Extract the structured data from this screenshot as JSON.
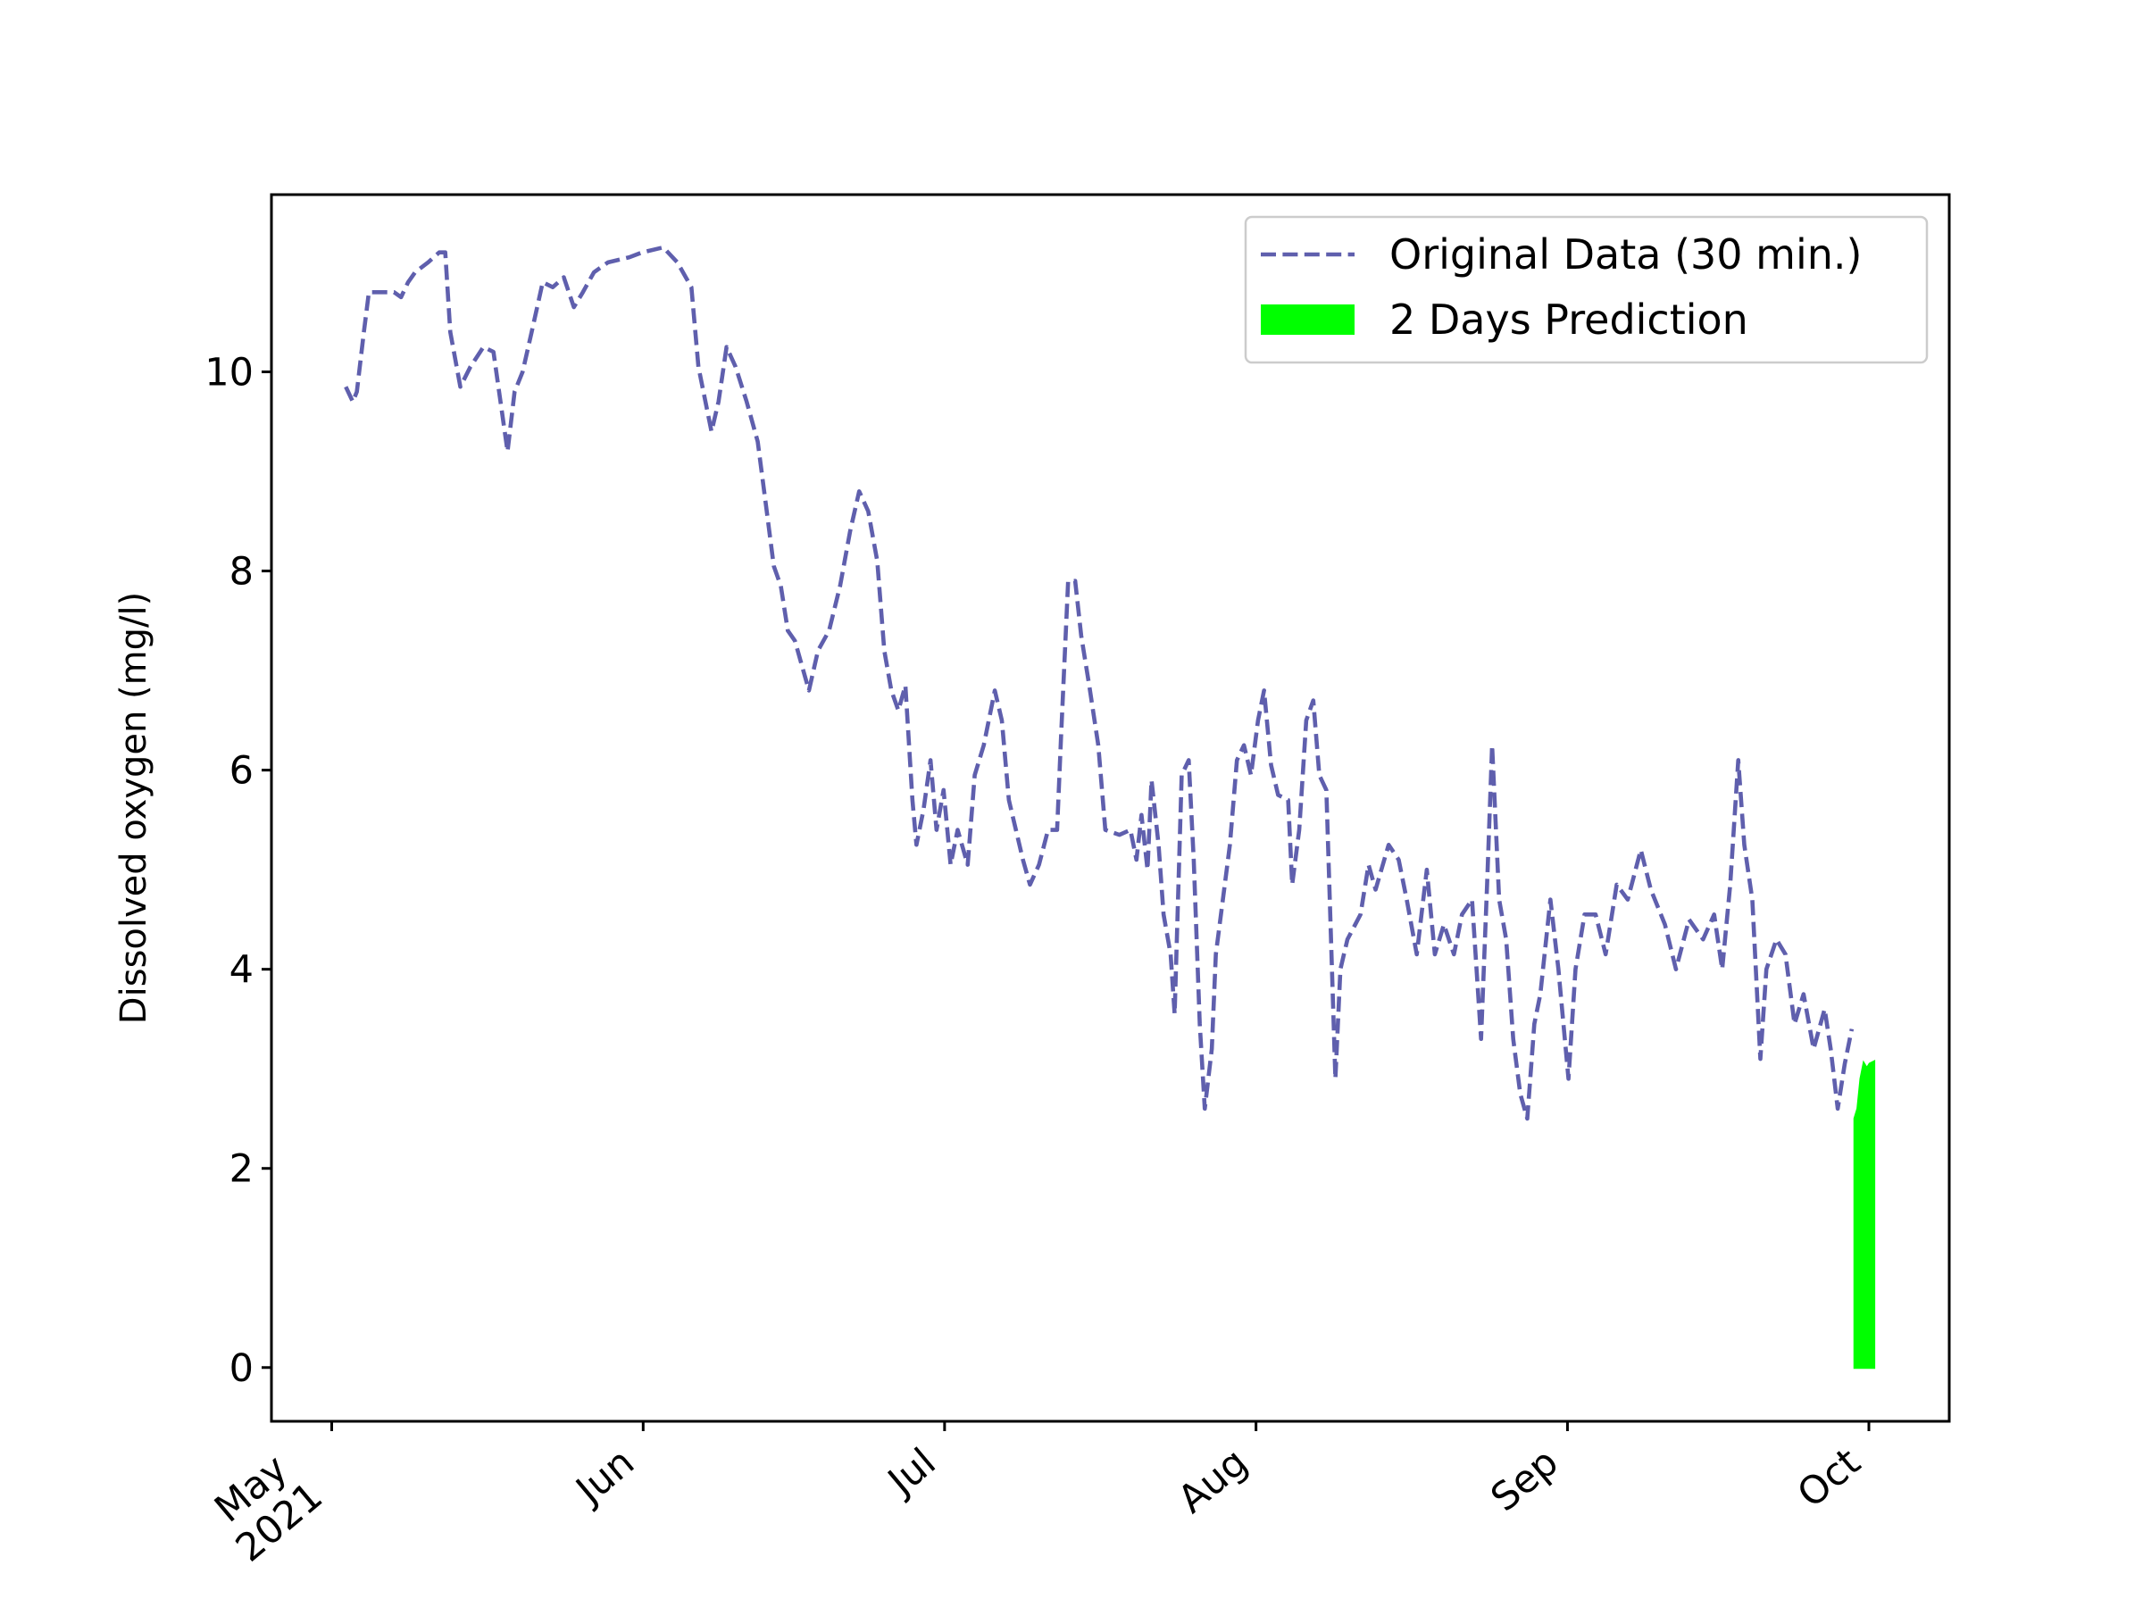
{
  "chart_data": {
    "type": "line",
    "y_label": "Dissolved oxygen (mg/l)",
    "xlim": [
      -6,
      161
    ],
    "ylim": [
      -0.54,
      11.78
    ],
    "xticks": [
      {
        "value": 0,
        "label": "May\n2021"
      },
      {
        "value": 31,
        "label": "Jun"
      },
      {
        "value": 61,
        "label": "Jul"
      },
      {
        "value": 92,
        "label": "Aug"
      },
      {
        "value": 123,
        "label": "Sep"
      },
      {
        "value": 153,
        "label": "Oct"
      }
    ],
    "yticks": [
      0,
      2,
      4,
      6,
      8,
      10
    ],
    "grid": false,
    "legend": "upper right",
    "series": [
      {
        "name": "Original Data (30 min.)",
        "color": "#5f5fad",
        "style": "dashed",
        "x": [
          1.4,
          2.1,
          2.5,
          3.2,
          3.7,
          4.8,
          6.2,
          6.9,
          7.6,
          8.3,
          9.6,
          10.7,
          11.3,
          11.8,
          12.8,
          13.8,
          15.1,
          16.1,
          16.8,
          17.5,
          18.2,
          19.0,
          19.9,
          21.0,
          22.0,
          23.1,
          24.1,
          25.0,
          26.1,
          27.5,
          29.6,
          30.9,
          33.0,
          34.4,
          35.8,
          36.5,
          37.8,
          38.5,
          39.3,
          40.2,
          41.3,
          42.4,
          43.3,
          44.0,
          44.7,
          45.4,
          46.1,
          46.8,
          47.5,
          48.4,
          49.5,
          50.6,
          51.6,
          52.5,
          53.4,
          54.3,
          55.0,
          55.7,
          56.4,
          57.1,
          57.8,
          58.2,
          58.9,
          59.6,
          60.2,
          60.9,
          61.6,
          62.3,
          63.3,
          64.0,
          64.9,
          66.0,
          66.7,
          67.4,
          68.1,
          68.8,
          69.5,
          70.4,
          71.3,
          72.2,
          72.6,
          73.3,
          74.0,
          74.6,
          75.4,
          76.3,
          77.0,
          78.4,
          79.5,
          80.1,
          80.6,
          81.2,
          81.6,
          82.3,
          82.8,
          83.5,
          83.9,
          84.6,
          85.3,
          85.8,
          86.4,
          86.9,
          87.6,
          88.0,
          88.7,
          89.4,
          90.1,
          90.8,
          91.5,
          92.2,
          92.8,
          93.5,
          94.2,
          95.2,
          95.6,
          96.3,
          97.0,
          97.7,
          98.3,
          99.0,
          99.9,
          100.4,
          101.1,
          102.4,
          103.2,
          103.9,
          105.2,
          106.2,
          107.0,
          108.0,
          109.0,
          109.8,
          110.7,
          111.7,
          112.5,
          113.5,
          114.4,
          115.0,
          115.5,
          116.2,
          116.9,
          117.6,
          118.3,
          119.0,
          119.7,
          120.3,
          121.3,
          122.1,
          123.1,
          123.8,
          124.7,
          125.8,
          126.8,
          127.9,
          129.0,
          130.3,
          131.3,
          132.7,
          133.8,
          135.1,
          136.5,
          137.6,
          138.4,
          139.2,
          140.0,
          140.6,
          141.4,
          142.2,
          142.8,
          143.8,
          144.7,
          145.6,
          146.5,
          147.5,
          148.6,
          149.2,
          149.9,
          150.6,
          151.3
        ],
        "values": [
          9.85,
          9.7,
          9.8,
          10.4,
          10.8,
          10.8,
          10.8,
          10.75,
          10.9,
          11.0,
          11.1,
          11.2,
          11.2,
          10.4,
          9.85,
          10.05,
          10.25,
          10.2,
          9.7,
          9.2,
          9.8,
          10.0,
          10.4,
          10.9,
          10.85,
          10.95,
          10.65,
          10.8,
          11.0,
          11.1,
          11.15,
          11.2,
          11.25,
          11.1,
          10.85,
          10.05,
          9.4,
          9.7,
          10.25,
          10.05,
          9.7,
          9.3,
          8.6,
          8.05,
          7.85,
          7.4,
          7.3,
          7.05,
          6.8,
          7.2,
          7.4,
          7.85,
          8.4,
          8.8,
          8.6,
          8.1,
          7.2,
          6.8,
          6.6,
          6.85,
          5.7,
          5.25,
          5.6,
          6.1,
          5.4,
          5.8,
          5.05,
          5.4,
          5.05,
          5.95,
          6.25,
          6.8,
          6.5,
          5.7,
          5.4,
          5.1,
          4.85,
          5.05,
          5.4,
          5.4,
          6.35,
          7.9,
          7.9,
          7.35,
          6.85,
          6.25,
          5.4,
          5.35,
          5.4,
          5.1,
          5.55,
          5.0,
          5.9,
          5.25,
          4.55,
          4.15,
          3.55,
          5.95,
          6.1,
          5.1,
          3.45,
          2.6,
          3.2,
          4.15,
          4.7,
          5.25,
          6.1,
          6.25,
          5.95,
          6.5,
          6.8,
          6.05,
          5.75,
          5.7,
          4.85,
          5.4,
          6.5,
          6.7,
          5.95,
          5.8,
          2.9,
          4.0,
          4.3,
          4.55,
          5.05,
          4.8,
          5.25,
          5.1,
          4.7,
          4.15,
          5.0,
          4.15,
          4.45,
          4.15,
          4.55,
          4.7,
          3.3,
          4.85,
          6.25,
          4.7,
          4.3,
          3.3,
          2.75,
          2.5,
          3.45,
          3.75,
          4.7,
          4.0,
          2.9,
          4.0,
          4.55,
          4.55,
          4.15,
          4.85,
          4.7,
          5.2,
          4.8,
          4.45,
          4.0,
          4.5,
          4.3,
          4.55,
          4.0,
          4.85,
          6.1,
          5.25,
          4.7,
          3.1,
          4.0,
          4.3,
          4.15,
          3.45,
          3.75,
          3.2,
          3.6,
          3.2,
          2.6,
          3.05,
          3.4
        ]
      },
      {
        "name": "2 Days Prediction",
        "color": "#00ff00",
        "type": "area",
        "x": [
          151.6,
          151.9,
          152.2,
          152.5,
          152.8,
          153.1,
          153.5
        ],
        "values": [
          2.5,
          2.6,
          2.9,
          3.05,
          3.0,
          3.05,
          3.07
        ]
      }
    ]
  }
}
